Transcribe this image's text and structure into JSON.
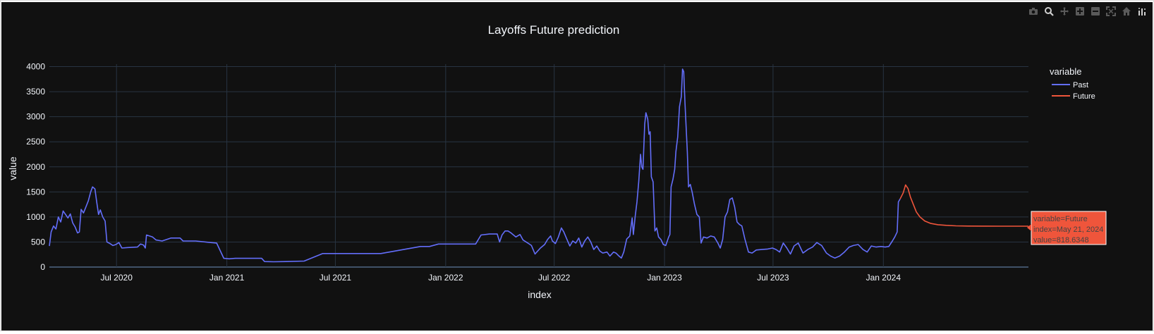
{
  "toolbar": {
    "icons": [
      "camera-icon",
      "zoom-icon",
      "pan-icon",
      "zoom-in-icon",
      "zoom-out-icon",
      "autoscale-icon",
      "home-icon",
      "plotly-logo-icon"
    ]
  },
  "colors": {
    "background": "#111111",
    "grid": "#283442",
    "past": "#636efa",
    "future": "#ef553b",
    "text": "#f2f5fa"
  },
  "chart_data": {
    "type": "line",
    "title": "Layoffs Future prediction",
    "xlabel": "index",
    "ylabel": "value",
    "xlim": [
      "2020-03-11",
      "2024-08-30"
    ],
    "ylim": [
      0,
      4050
    ],
    "yticks": [
      0,
      500,
      1000,
      1500,
      2000,
      2500,
      3000,
      3500,
      4000
    ],
    "yticklabels": [
      "0",
      "500",
      "1000",
      "1500",
      "2000",
      "2500",
      "3000",
      "3500",
      "4000"
    ],
    "xticks": [
      "2020-07-01",
      "2021-01-01",
      "2021-07-01",
      "2022-01-01",
      "2022-07-01",
      "2023-01-01",
      "2023-07-01",
      "2024-01-01"
    ],
    "xticklabels": [
      "Jul 2020",
      "Jan 2021",
      "Jul 2021",
      "Jan 2022",
      "Jul 2022",
      "Jan 2023",
      "Jul 2023",
      "Jan 2024"
    ],
    "grid": true,
    "legend": {
      "title": "variable",
      "position": "right"
    },
    "series": [
      {
        "name": "Past",
        "color": "#636efa",
        "points": [
          [
            "2020-03-11",
            420
          ],
          [
            "2020-03-14",
            700
          ],
          [
            "2020-03-18",
            820
          ],
          [
            "2020-03-22",
            760
          ],
          [
            "2020-03-26",
            1000
          ],
          [
            "2020-03-30",
            900
          ],
          [
            "2020-04-03",
            1120
          ],
          [
            "2020-04-07",
            1050
          ],
          [
            "2020-04-11",
            980
          ],
          [
            "2020-04-15",
            1060
          ],
          [
            "2020-04-19",
            880
          ],
          [
            "2020-04-23",
            800
          ],
          [
            "2020-04-27",
            680
          ],
          [
            "2020-04-30",
            700
          ],
          [
            "2020-05-03",
            1150
          ],
          [
            "2020-05-07",
            1080
          ],
          [
            "2020-05-11",
            1200
          ],
          [
            "2020-05-15",
            1320
          ],
          [
            "2020-05-19",
            1500
          ],
          [
            "2020-05-22",
            1600
          ],
          [
            "2020-05-26",
            1560
          ],
          [
            "2020-05-29",
            1300
          ],
          [
            "2020-06-01",
            1050
          ],
          [
            "2020-06-04",
            1140
          ],
          [
            "2020-06-08",
            1000
          ],
          [
            "2020-06-12",
            920
          ],
          [
            "2020-06-15",
            500
          ],
          [
            "2020-06-20",
            470
          ],
          [
            "2020-06-25",
            430
          ],
          [
            "2020-06-30",
            450
          ],
          [
            "2020-07-05",
            490
          ],
          [
            "2020-07-10",
            380
          ],
          [
            "2020-07-20",
            390
          ],
          [
            "2020-08-05",
            400
          ],
          [
            "2020-08-10",
            460
          ],
          [
            "2020-08-15",
            440
          ],
          [
            "2020-08-18",
            380
          ],
          [
            "2020-08-20",
            640
          ],
          [
            "2020-08-30",
            600
          ],
          [
            "2020-09-05",
            540
          ],
          [
            "2020-09-15",
            520
          ],
          [
            "2020-09-30",
            580
          ],
          [
            "2020-10-15",
            580
          ],
          [
            "2020-10-20",
            520
          ],
          [
            "2020-11-10",
            520
          ],
          [
            "2020-12-05",
            490
          ],
          [
            "2020-12-15",
            480
          ],
          [
            "2020-12-27",
            175
          ],
          [
            "2021-01-05",
            165
          ],
          [
            "2021-01-15",
            175
          ],
          [
            "2021-02-10",
            175
          ],
          [
            "2021-02-28",
            175
          ],
          [
            "2021-03-05",
            110
          ],
          [
            "2021-03-20",
            105
          ],
          [
            "2021-04-10",
            110
          ],
          [
            "2021-05-10",
            120
          ],
          [
            "2021-06-10",
            270
          ],
          [
            "2021-07-20",
            270
          ],
          [
            "2021-09-15",
            270
          ],
          [
            "2021-11-20",
            410
          ],
          [
            "2021-12-05",
            410
          ],
          [
            "2021-12-20",
            460
          ],
          [
            "2022-01-15",
            460
          ],
          [
            "2022-02-20",
            460
          ],
          [
            "2022-03-01",
            640
          ],
          [
            "2022-03-15",
            660
          ],
          [
            "2022-03-28",
            660
          ],
          [
            "2022-04-01",
            500
          ],
          [
            "2022-04-05",
            640
          ],
          [
            "2022-04-10",
            720
          ],
          [
            "2022-04-15",
            720
          ],
          [
            "2022-04-20",
            680
          ],
          [
            "2022-04-28",
            600
          ],
          [
            "2022-05-05",
            650
          ],
          [
            "2022-05-10",
            540
          ],
          [
            "2022-05-18",
            480
          ],
          [
            "2022-05-24",
            430
          ],
          [
            "2022-05-30",
            260
          ],
          [
            "2022-06-08",
            380
          ],
          [
            "2022-06-15",
            450
          ],
          [
            "2022-06-20",
            550
          ],
          [
            "2022-06-25",
            620
          ],
          [
            "2022-06-28",
            520
          ],
          [
            "2022-07-03",
            470
          ],
          [
            "2022-07-08",
            600
          ],
          [
            "2022-07-13",
            780
          ],
          [
            "2022-07-17",
            700
          ],
          [
            "2022-07-22",
            560
          ],
          [
            "2022-07-27",
            420
          ],
          [
            "2022-08-01",
            520
          ],
          [
            "2022-08-06",
            480
          ],
          [
            "2022-08-11",
            580
          ],
          [
            "2022-08-16",
            400
          ],
          [
            "2022-08-21",
            520
          ],
          [
            "2022-08-26",
            600
          ],
          [
            "2022-08-31",
            500
          ],
          [
            "2022-09-05",
            350
          ],
          [
            "2022-09-10",
            420
          ],
          [
            "2022-09-15",
            320
          ],
          [
            "2022-09-20",
            280
          ],
          [
            "2022-09-27",
            300
          ],
          [
            "2022-10-02",
            220
          ],
          [
            "2022-10-08",
            300
          ],
          [
            "2022-10-12",
            280
          ],
          [
            "2022-10-17",
            220
          ],
          [
            "2022-10-21",
            180
          ],
          [
            "2022-10-25",
            300
          ],
          [
            "2022-10-30",
            560
          ],
          [
            "2022-11-04",
            620
          ],
          [
            "2022-11-08",
            980
          ],
          [
            "2022-11-10",
            650
          ],
          [
            "2022-11-13",
            1000
          ],
          [
            "2022-11-16",
            1300
          ],
          [
            "2022-11-19",
            1700
          ],
          [
            "2022-11-22",
            2250
          ],
          [
            "2022-11-24",
            2000
          ],
          [
            "2022-11-26",
            1950
          ],
          [
            "2022-11-29",
            2850
          ],
          [
            "2022-12-01",
            3080
          ],
          [
            "2022-12-04",
            2950
          ],
          [
            "2022-12-06",
            2650
          ],
          [
            "2022-12-08",
            2700
          ],
          [
            "2022-12-10",
            1800
          ],
          [
            "2022-12-13",
            1700
          ],
          [
            "2022-12-16",
            720
          ],
          [
            "2022-12-19",
            780
          ],
          [
            "2022-12-22",
            600
          ],
          [
            "2022-12-26",
            550
          ],
          [
            "2022-12-30",
            450
          ],
          [
            "2023-01-03",
            430
          ],
          [
            "2023-01-08",
            600
          ],
          [
            "2023-01-10",
            650
          ],
          [
            "2023-01-12",
            1600
          ],
          [
            "2023-01-15",
            1750
          ],
          [
            "2023-01-18",
            1950
          ],
          [
            "2023-01-20",
            2300
          ],
          [
            "2023-01-23",
            2600
          ],
          [
            "2023-01-26",
            3200
          ],
          [
            "2023-01-29",
            3400
          ],
          [
            "2023-01-31",
            3950
          ],
          [
            "2023-02-02",
            3900
          ],
          [
            "2023-02-04",
            3300
          ],
          [
            "2023-02-06",
            2800
          ],
          [
            "2023-02-08",
            2300
          ],
          [
            "2023-02-10",
            1600
          ],
          [
            "2023-02-13",
            1650
          ],
          [
            "2023-02-16",
            1500
          ],
          [
            "2023-02-20",
            1250
          ],
          [
            "2023-02-24",
            1050
          ],
          [
            "2023-02-28",
            1000
          ],
          [
            "2023-03-03",
            480
          ],
          [
            "2023-03-07",
            600
          ],
          [
            "2023-03-13",
            580
          ],
          [
            "2023-03-19",
            620
          ],
          [
            "2023-03-25",
            600
          ],
          [
            "2023-03-31",
            480
          ],
          [
            "2023-04-04",
            380
          ],
          [
            "2023-04-08",
            550
          ],
          [
            "2023-04-12",
            1000
          ],
          [
            "2023-04-16",
            1100
          ],
          [
            "2023-04-20",
            1350
          ],
          [
            "2023-04-24",
            1380
          ],
          [
            "2023-04-28",
            1200
          ],
          [
            "2023-05-02",
            900
          ],
          [
            "2023-05-06",
            850
          ],
          [
            "2023-05-10",
            820
          ],
          [
            "2023-05-15",
            560
          ],
          [
            "2023-05-21",
            300
          ],
          [
            "2023-05-27",
            280
          ],
          [
            "2023-06-03",
            340
          ],
          [
            "2023-06-12",
            350
          ],
          [
            "2023-06-22",
            360
          ],
          [
            "2023-06-30",
            380
          ],
          [
            "2023-07-06",
            350
          ],
          [
            "2023-07-12",
            300
          ],
          [
            "2023-07-18",
            480
          ],
          [
            "2023-07-24",
            380
          ],
          [
            "2023-07-30",
            260
          ],
          [
            "2023-08-05",
            420
          ],
          [
            "2023-08-12",
            480
          ],
          [
            "2023-08-20",
            280
          ],
          [
            "2023-08-28",
            350
          ],
          [
            "2023-09-05",
            400
          ],
          [
            "2023-09-12",
            490
          ],
          [
            "2023-09-20",
            430
          ],
          [
            "2023-09-28",
            280
          ],
          [
            "2023-10-05",
            220
          ],
          [
            "2023-10-12",
            180
          ],
          [
            "2023-10-20",
            220
          ],
          [
            "2023-10-28",
            300
          ],
          [
            "2023-11-05",
            400
          ],
          [
            "2023-11-12",
            430
          ],
          [
            "2023-11-20",
            450
          ],
          [
            "2023-11-28",
            350
          ],
          [
            "2023-12-05",
            300
          ],
          [
            "2023-12-12",
            420
          ],
          [
            "2023-12-20",
            400
          ],
          [
            "2023-12-28",
            410
          ],
          [
            "2024-01-04",
            400
          ],
          [
            "2024-01-10",
            410
          ],
          [
            "2024-01-16",
            520
          ],
          [
            "2024-01-20",
            600
          ],
          [
            "2024-01-24",
            700
          ],
          [
            "2024-01-26",
            1300
          ],
          [
            "2024-01-29",
            1360
          ]
        ]
      },
      {
        "name": "Future",
        "color": "#ef553b",
        "points": [
          [
            "2024-01-29",
            1360
          ],
          [
            "2024-02-03",
            1480
          ],
          [
            "2024-02-07",
            1640
          ],
          [
            "2024-02-11",
            1570
          ],
          [
            "2024-02-15",
            1400
          ],
          [
            "2024-02-20",
            1250
          ],
          [
            "2024-02-25",
            1100
          ],
          [
            "2024-03-02",
            1000
          ],
          [
            "2024-03-10",
            920
          ],
          [
            "2024-03-20",
            870
          ],
          [
            "2024-04-01",
            845
          ],
          [
            "2024-04-15",
            832
          ],
          [
            "2024-05-01",
            823
          ],
          [
            "2024-05-21",
            818.6348
          ],
          [
            "2024-06-15",
            817
          ],
          [
            "2024-07-15",
            816
          ],
          [
            "2024-08-30",
            816
          ]
        ]
      }
    ],
    "hover": {
      "line1": "variable=Future",
      "line2": "index=May 21, 2024",
      "line3": "value=818.6348"
    }
  }
}
